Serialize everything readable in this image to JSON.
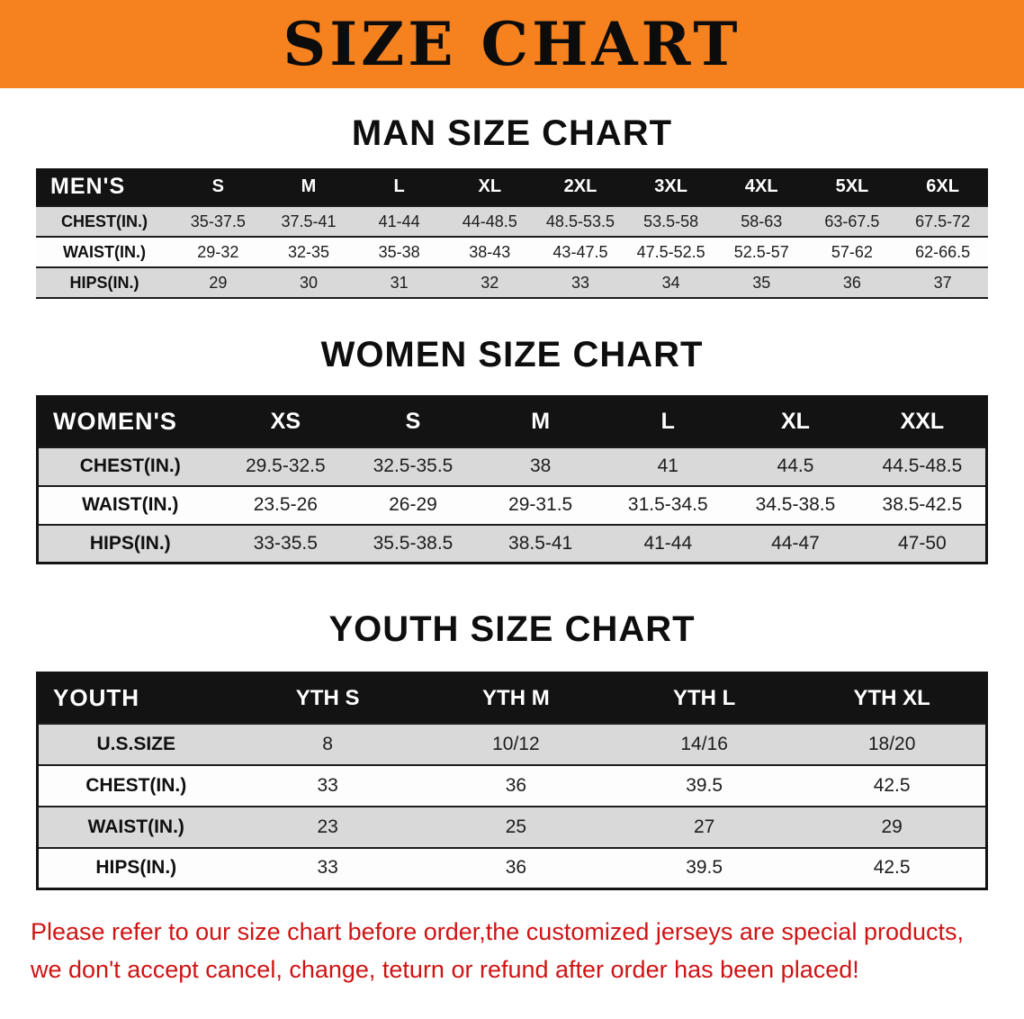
{
  "banner": {
    "title": "SIZE CHART",
    "bg_color": "#f5821f",
    "text_color": "#0c0c0c"
  },
  "men": {
    "heading": "MAN SIZE CHART",
    "table": {
      "header": [
        "MEN'S",
        "S",
        "M",
        "L",
        "XL",
        "2XL",
        "3XL",
        "4XL",
        "5XL",
        "6XL"
      ],
      "rows": [
        [
          "CHEST(IN.)",
          "35-37.5",
          "37.5-41",
          "41-44",
          "44-48.5",
          "48.5-53.5",
          "53.5-58",
          "58-63",
          "63-67.5",
          "67.5-72"
        ],
        [
          "WAIST(IN.)",
          "29-32",
          "32-35",
          "35-38",
          "38-43",
          "43-47.5",
          "47.5-52.5",
          "52.5-57",
          "57-62",
          "62-66.5"
        ],
        [
          "HIPS(IN.)",
          "29",
          "30",
          "31",
          "32",
          "33",
          "34",
          "35",
          "36",
          "37"
        ]
      ]
    }
  },
  "women": {
    "heading": "WOMEN SIZE CHART",
    "table": {
      "header": [
        "WOMEN'S",
        "XS",
        "S",
        "M",
        "L",
        "XL",
        "XXL"
      ],
      "rows": [
        [
          "CHEST(IN.)",
          "29.5-32.5",
          "32.5-35.5",
          "38",
          "41",
          "44.5",
          "44.5-48.5"
        ],
        [
          "WAIST(IN.)",
          "23.5-26",
          "26-29",
          "29-31.5",
          "31.5-34.5",
          "34.5-38.5",
          "38.5-42.5"
        ],
        [
          "HIPS(IN.)",
          "33-35.5",
          "35.5-38.5",
          "38.5-41",
          "41-44",
          "44-47",
          "47-50"
        ]
      ]
    }
  },
  "youth": {
    "heading": "YOUTH SIZE CHART",
    "table": {
      "header": [
        "YOUTH",
        "YTH S",
        "YTH M",
        "YTH L",
        "YTH XL"
      ],
      "rows": [
        [
          "U.S.SIZE",
          "8",
          "10/12",
          "14/16",
          "18/20"
        ],
        [
          "CHEST(IN.)",
          "33",
          "36",
          "39.5",
          "42.5"
        ],
        [
          "WAIST(IN.)",
          "23",
          "25",
          "27",
          "29"
        ],
        [
          "HIPS(IN.)",
          "33",
          "36",
          "39.5",
          "42.5"
        ]
      ]
    }
  },
  "footer": {
    "line1": "Please refer to our size chart before order,the customized jerseys are special products,",
    "line2": "we don't accept cancel, change, teturn or refund after order has been placed!",
    "text_color": "#cf1414"
  }
}
